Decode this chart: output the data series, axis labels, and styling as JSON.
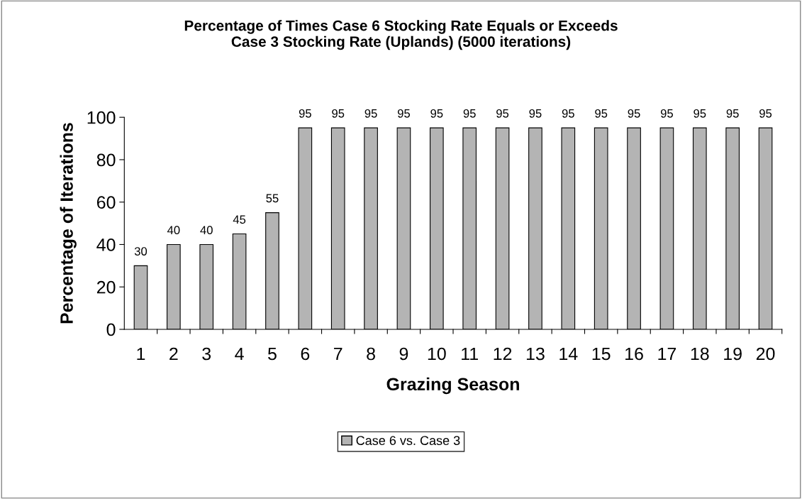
{
  "chart_data": {
    "type": "bar",
    "title": "Percentage of Times Case 6 Stocking Rate Equals or Exceeds\nCase 3 Stocking Rate (Uplands) (5000 iterations)",
    "xlabel": "Grazing Season",
    "ylabel": "Percentage of Iterations",
    "categories": [
      "1",
      "2",
      "3",
      "4",
      "5",
      "6",
      "7",
      "8",
      "9",
      "10",
      "11",
      "12",
      "13",
      "14",
      "15",
      "16",
      "17",
      "18",
      "19",
      "20"
    ],
    "series": [
      {
        "name": "Case 6 vs. Case 3",
        "color": "#b4b4b4",
        "values": [
          30,
          40,
          40,
          45,
          55,
          95,
          95,
          95,
          95,
          95,
          95,
          95,
          95,
          95,
          95,
          95,
          95,
          95,
          95,
          95
        ]
      }
    ],
    "ylim": [
      0,
      100
    ],
    "yticks": [
      0,
      20,
      40,
      60,
      80,
      100
    ],
    "data_labels": true,
    "legend": "bottom",
    "grid": false
  }
}
